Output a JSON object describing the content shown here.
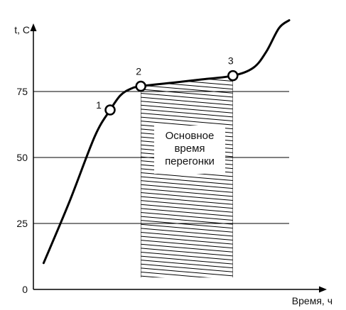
{
  "chart_data": {
    "type": "line",
    "ylabel": "t, C",
    "xlabel": "Время, ч",
    "yticks": [
      0,
      25,
      50,
      75
    ],
    "ylim": [
      0,
      100
    ],
    "xlim": [
      0,
      10
    ],
    "grid": {
      "horizontal": true,
      "vertical": false
    },
    "series": [
      {
        "x": [
          0.4,
          1.4,
          2.4,
          3.0,
          3.4,
          3.8,
          4.2,
          5.4,
          6.6,
          7.8,
          8.6,
          9.1,
          9.6,
          10.0
        ],
        "y": [
          10,
          33,
          58,
          68,
          73.5,
          76,
          77,
          78.3,
          79.6,
          81,
          84,
          90,
          99,
          102
        ]
      }
    ],
    "points": [
      {
        "label": "1",
        "x": 3.0,
        "y": 68
      },
      {
        "label": "2",
        "x": 4.2,
        "y": 77
      },
      {
        "label": "3",
        "x": 7.8,
        "y": 81
      }
    ],
    "shaded_region": {
      "x_from": 4.2,
      "x_to": 7.8,
      "y_bottom": 4.5
    },
    "annotation": [
      "Основное",
      "время",
      "перегонки"
    ]
  }
}
